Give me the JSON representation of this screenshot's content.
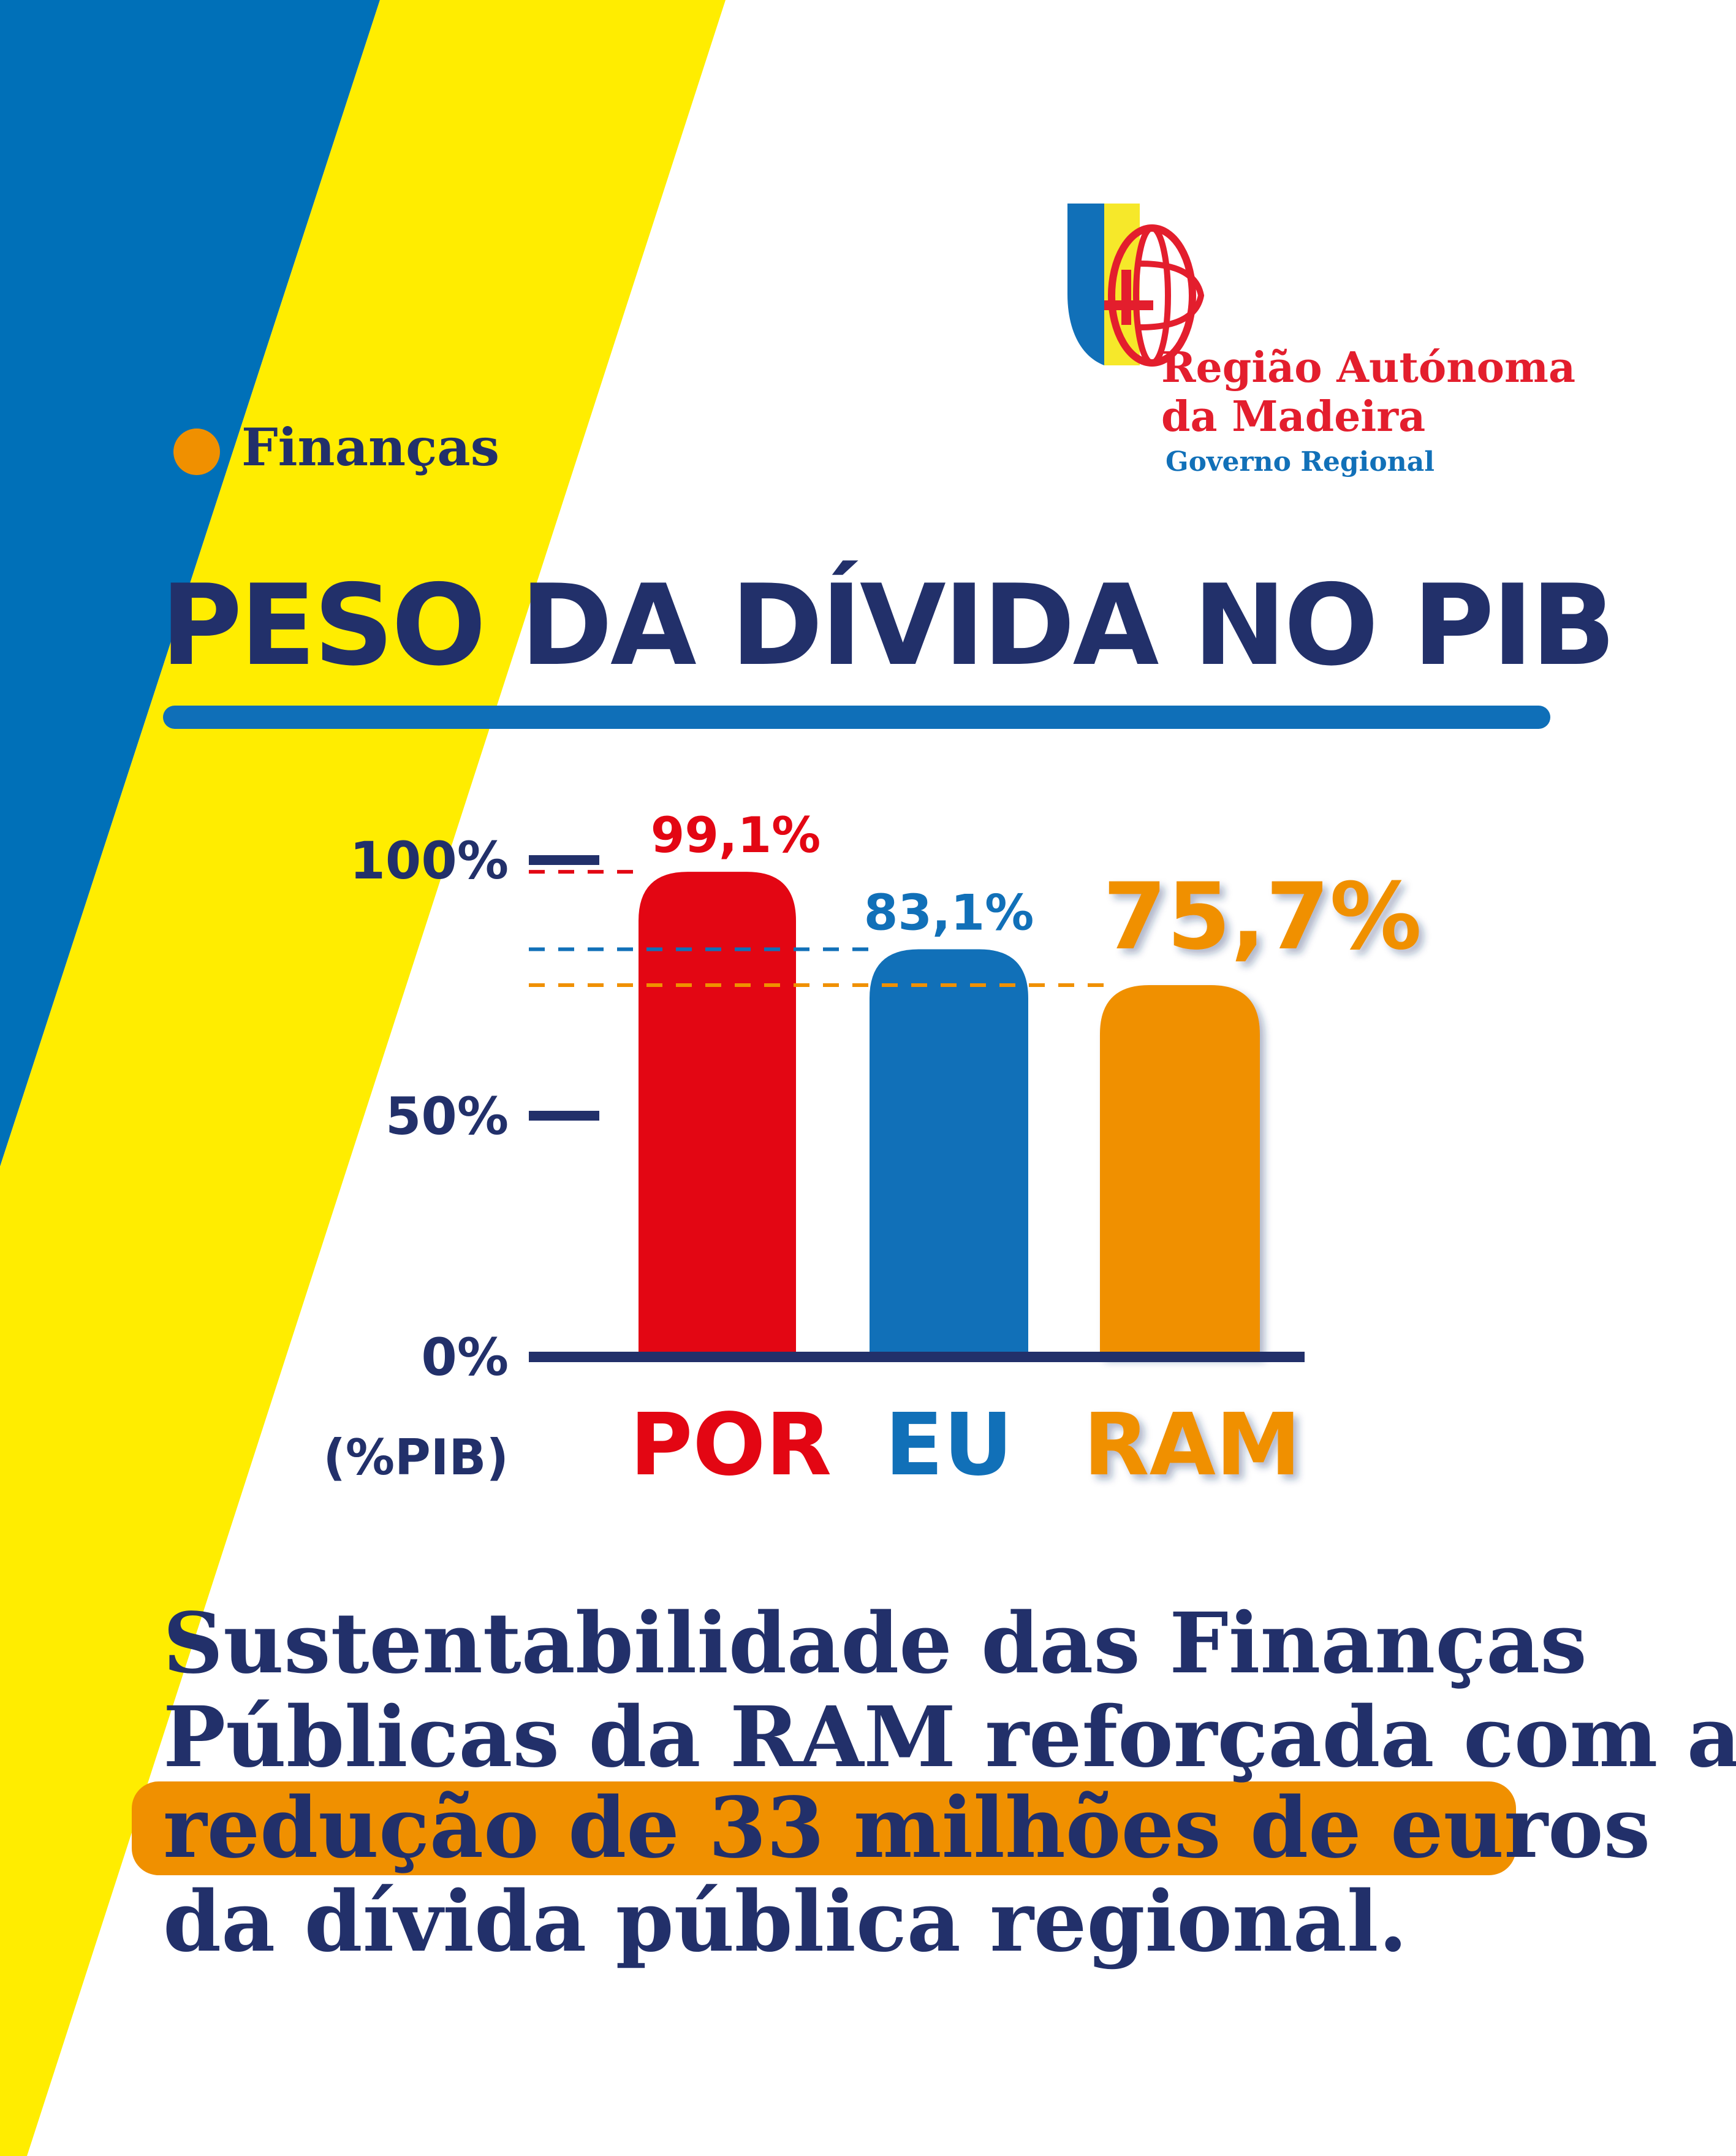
{
  "colors": {
    "navy": "#22306a",
    "red": "#e30613",
    "blue": "#1170b8",
    "orange": "#f09000",
    "yellow": "#ffed00",
    "stripe_blue": "#0070b8"
  },
  "logo": {
    "line1": "Região Autónoma",
    "line2": "da Madeira",
    "line3": "Governo Regional"
  },
  "category": {
    "label": "Finanças"
  },
  "title": "PESO DA DÍVIDA NO PIB",
  "chart_data": {
    "type": "bar",
    "title": "PESO DA DÍVIDA NO PIB",
    "ylabel": "(%PIB)",
    "ylim": [
      0,
      100
    ],
    "yticks": [
      {
        "value": 100,
        "label": "100%"
      },
      {
        "value": 50,
        "label": "50%"
      },
      {
        "value": 0,
        "label": "0%"
      }
    ],
    "categories": [
      "POR",
      "EU",
      "RAM"
    ],
    "values": [
      99.1,
      83.1,
      75.7
    ],
    "value_labels": [
      "99,1%",
      "83,1%",
      "75,7%"
    ],
    "bar_colors": [
      "#e30613",
      "#1170b8",
      "#f09000"
    ]
  },
  "body": {
    "line1": "Sustentabilidade das Finanças",
    "line2": "Públicas da RAM reforçada com a",
    "line3": "redução de 33 milhões de euros",
    "line4": "da dívida pública regional."
  }
}
